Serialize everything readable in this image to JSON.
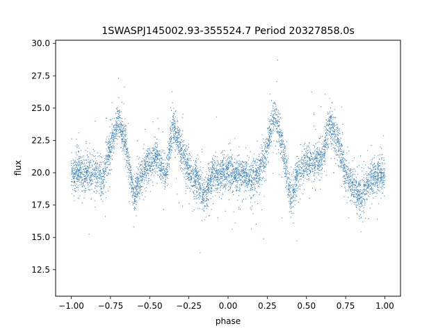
{
  "chart_data": {
    "type": "scatter",
    "title": "1SWASPJ145002.93-355524.7 Period 20327858.0s",
    "xlabel": "phase",
    "ylabel": "flux",
    "xlim": [
      -1.1,
      1.1
    ],
    "ylim": [
      10.45,
      30.25
    ],
    "grid": false,
    "legend": "none",
    "x_ticks": [
      -1.0,
      -0.75,
      -0.5,
      -0.25,
      0.0,
      0.25,
      0.5,
      0.75,
      1.0
    ],
    "x_tick_labels": [
      "−1.00",
      "−0.75",
      "−0.50",
      "−0.25",
      "0.00",
      "0.25",
      "0.50",
      "0.75",
      "1.00"
    ],
    "y_ticks": [
      12.5,
      15.0,
      17.5,
      20.0,
      22.5,
      25.0,
      27.5,
      30.0
    ],
    "y_tick_labels": [
      "12.5",
      "15.0",
      "17.5",
      "20.0",
      "22.5",
      "25.0",
      "27.5",
      "30.0"
    ],
    "marker_color": "#3b82b8",
    "series": [
      {
        "x": [
          -1.0,
          -0.95,
          -0.9,
          -0.85,
          -0.8,
          -0.75,
          -0.7,
          -0.65,
          -0.6,
          -0.55,
          -0.5,
          -0.45,
          -0.4,
          -0.35,
          -0.3,
          -0.25,
          -0.2,
          -0.15,
          -0.1,
          -0.05,
          0.0,
          0.05,
          0.1,
          0.15,
          0.2,
          0.25,
          0.3,
          0.35,
          0.4,
          0.45,
          0.5,
          0.55,
          0.6,
          0.65,
          0.7,
          0.75,
          0.8,
          0.85,
          0.9,
          0.95,
          1.0
        ],
        "y": [
          19.8,
          20.2,
          19.9,
          20.0,
          19.5,
          22.0,
          24.2,
          22.0,
          18.2,
          20.0,
          20.8,
          21.2,
          19.6,
          23.8,
          21.8,
          20.2,
          19.4,
          18.2,
          19.9,
          19.8,
          20.0,
          19.8,
          19.9,
          19.6,
          20.0,
          22.0,
          24.5,
          22.0,
          18.0,
          20.0,
          20.8,
          21.0,
          21.2,
          23.8,
          22.5,
          20.0,
          19.0,
          18.0,
          19.5,
          19.8,
          20.0
        ]
      }
    ]
  }
}
